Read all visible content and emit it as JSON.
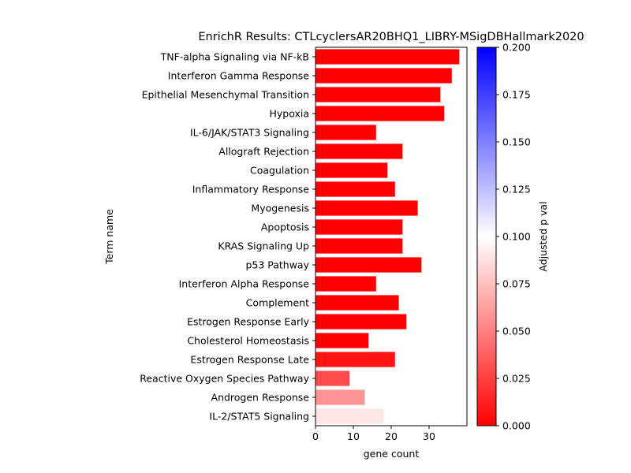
{
  "chart_data": {
    "type": "bar",
    "orientation": "horizontal",
    "title": "EnrichR Results: CTLcyclersAR20BHQ1_LIBRY-MSigDBHallmark2020",
    "xlabel": "gene count",
    "ylabel": "Term name",
    "xlim": [
      0,
      40
    ],
    "xticks": [
      0,
      10,
      20,
      30
    ],
    "grid": false,
    "categories": [
      "TNF-alpha Signaling via NF-kB",
      "Interferon Gamma Response",
      "Epithelial Mesenchymal Transition",
      "Hypoxia",
      "IL-6/JAK/STAT3 Signaling",
      "Allograft Rejection",
      "Coagulation",
      "Inflammatory Response",
      "Myogenesis",
      "Apoptosis",
      "KRAS Signaling Up",
      "p53 Pathway",
      "Interferon Alpha Response",
      "Complement",
      "Estrogen Response Early",
      "Cholesterol Homeostasis",
      "Estrogen Response Late",
      "Reactive Oxygen Species Pathway",
      "Androgen Response",
      "IL-2/STAT5 Signaling"
    ],
    "values": [
      38,
      36,
      33,
      34,
      16,
      23,
      19,
      21,
      27,
      23,
      23,
      28,
      16,
      22,
      24,
      14,
      21,
      9,
      13,
      18
    ],
    "adjusted_p_values": [
      0.0,
      0.0,
      0.0,
      0.0,
      0.0,
      0.0,
      0.0,
      0.0,
      0.0,
      0.0,
      0.0,
      0.0,
      0.0,
      0.0,
      0.0,
      0.0,
      0.008,
      0.03,
      0.058,
      0.09
    ],
    "colorbar": {
      "label": "Adjusted p val",
      "range": [
        0.0,
        0.2
      ],
      "ticks": [
        "0.000",
        "0.025",
        "0.050",
        "0.075",
        "0.100",
        "0.125",
        "0.150",
        "0.175",
        "0.200"
      ],
      "colormap": "bwr_r",
      "color_low": "#ff0000",
      "color_mid": "#ffffff",
      "color_high": "#0000ff"
    }
  }
}
